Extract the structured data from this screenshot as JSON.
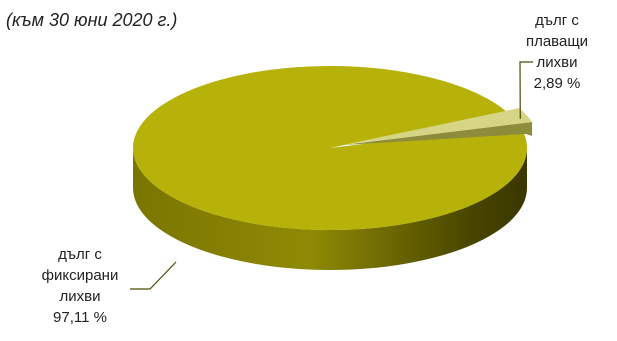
{
  "subtitle": "(към 30 юни 2020 г.)",
  "colors": {
    "fixed_top": "#b6b20a",
    "fixed_side_dark": "#3d3a00",
    "floating_top": "#d6d585",
    "floating_side": "#8d8c3a",
    "leader": "#4d4a00"
  },
  "chart_data": {
    "type": "pie",
    "title": "(към 30 юни 2020 г.)",
    "slices": [
      {
        "label_lines": [
          "дълг с",
          "плаващи",
          "лихви"
        ],
        "value": 2.89,
        "value_text": "2,89 %",
        "color": "#d6d585"
      },
      {
        "label_lines": [
          "дълг с",
          "фиксирани",
          "лихви"
        ],
        "value": 97.11,
        "value_text": "97,11 %",
        "color": "#b6b20a"
      }
    ],
    "legend": "none",
    "style": "3d"
  }
}
